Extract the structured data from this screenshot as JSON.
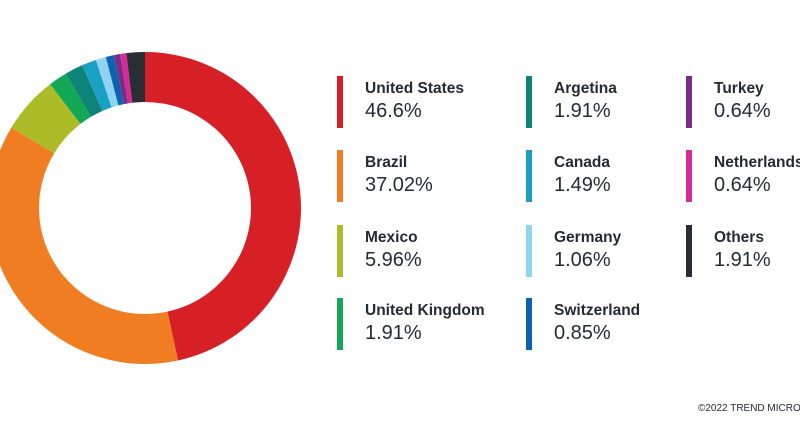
{
  "chart_data": {
    "type": "pie",
    "categories": [
      "United States",
      "Brazil",
      "Mexico",
      "United Kingdom",
      "Argetina",
      "Canada",
      "Germany",
      "Switzerland",
      "Turkey",
      "Netherlands",
      "Others"
    ],
    "values": [
      46.6,
      37.02,
      5.96,
      1.91,
      1.91,
      1.49,
      1.06,
      0.85,
      0.64,
      0.64,
      1.91
    ],
    "value_labels": [
      "46.6%",
      "37.02%",
      "5.96%",
      "1.91%",
      "1.91%",
      "1.49%",
      "1.06%",
      "0.85%",
      "0.64%",
      "0.64%",
      "1.91%"
    ],
    "colors": [
      "#d71f26",
      "#f07d22",
      "#acbb27",
      "#12a856",
      "#0e8378",
      "#1aa0c4",
      "#8fd4f1",
      "#0c62b1",
      "#7b2c86",
      "#d62a9a",
      "#2a2d33"
    ],
    "donut": true,
    "legend_placement": "right"
  },
  "footer": {
    "copyright": "©2022 TREND MICRO"
  }
}
